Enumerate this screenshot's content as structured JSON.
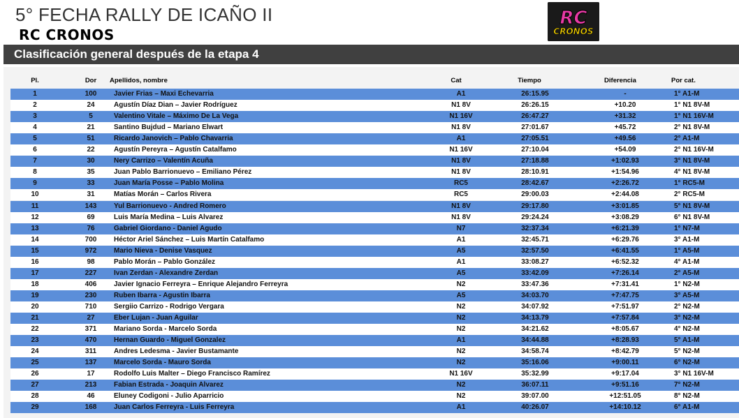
{
  "title": "5° FECHA RALLY DE ICAÑO II",
  "subtitle": "RC CRONOS",
  "logo": {
    "text_top": "RC",
    "text_bottom": "CRONOS"
  },
  "banner": "Clasificación general después de la etapa 4",
  "columns": {
    "pl": "Pl.",
    "dor": "Dor",
    "name": "Apellidos, nombre",
    "cat": "Cat",
    "tiempo": "Tiempo",
    "dif": "Diferencia",
    "porcat": "Por cat."
  },
  "rows": [
    {
      "pl": "1",
      "dor": "100",
      "name": "Javier Frias –  Maxi Echevarria",
      "cat": "A1",
      "tiempo": "26:15.95",
      "dif": "-",
      "porcat": "1° A1-M"
    },
    {
      "pl": "2",
      "dor": "24",
      "name": "Agustín Díaz Dian – Javier Rodríguez",
      "cat": "N1 8V",
      "tiempo": "26:26.15",
      "dif": "+10.20",
      "porcat": "1° N1 8V-M"
    },
    {
      "pl": "3",
      "dor": "5",
      "name": "Valentino Vitale – Máximo De La Vega",
      "cat": "N1 16V",
      "tiempo": "26:47.27",
      "dif": "+31.32",
      "porcat": "1° N1 16V-M"
    },
    {
      "pl": "4",
      "dor": "21",
      "name": "Santino Bujdud – Mariano Elwart",
      "cat": "N1 8V",
      "tiempo": "27:01.67",
      "dif": "+45.72",
      "porcat": "2° N1 8V-M"
    },
    {
      "pl": "5",
      "dor": "51",
      "name": "Ricardo Janovich – Pablo Chavarria",
      "cat": "A1",
      "tiempo": "27:05.51",
      "dif": "+49.56",
      "porcat": "2° A1-M"
    },
    {
      "pl": "6",
      "dor": "22",
      "name": "Agustín Pereyra  –  Agustín Catalfamo",
      "cat": "N1 16V",
      "tiempo": "27:10.04",
      "dif": "+54.09",
      "porcat": "2° N1 16V-M"
    },
    {
      "pl": "7",
      "dor": "30",
      "name": "Nery Carrizo – Valentín Acuña",
      "cat": "N1 8V",
      "tiempo": "27:18.88",
      "dif": "+1:02.93",
      "porcat": "3° N1 8V-M"
    },
    {
      "pl": "8",
      "dor": "35",
      "name": "Juan Pablo Barrionuevo – Emiliano Pérez",
      "cat": "N1 8V",
      "tiempo": "28:10.91",
      "dif": "+1:54.96",
      "porcat": "4° N1 8V-M"
    },
    {
      "pl": "9",
      "dor": "33",
      "name": "Juan María Posse – Pablo Molina",
      "cat": "RC5",
      "tiempo": "28:42.67",
      "dif": "+2:26.72",
      "porcat": "1° RC5-M"
    },
    {
      "pl": "10",
      "dor": "31",
      "name": "Matías Morán – Carlos Rivera",
      "cat": "RC5",
      "tiempo": "29:00.03",
      "dif": "+2:44.08",
      "porcat": "2° RC5-M"
    },
    {
      "pl": "11",
      "dor": "143",
      "name": "Yul Barrionuevo - Andred Romero",
      "cat": "N1 8V",
      "tiempo": "29:17.80",
      "dif": "+3:01.85",
      "porcat": "5° N1 8V-M"
    },
    {
      "pl": "12",
      "dor": "69",
      "name": "Luis María Medina – Luis Alvarez",
      "cat": "N1 8V",
      "tiempo": "29:24.24",
      "dif": "+3:08.29",
      "porcat": "6° N1 8V-M"
    },
    {
      "pl": "13",
      "dor": "76",
      "name": "Gabriel  Giordano - Daniel Agudo",
      "cat": "N7",
      "tiempo": "32:37.34",
      "dif": "+6:21.39",
      "porcat": "1° N7-M"
    },
    {
      "pl": "14",
      "dor": "700",
      "name": "Héctor Ariel Sánchez – Luis Martín Catalfamo",
      "cat": "A1",
      "tiempo": "32:45.71",
      "dif": "+6:29.76",
      "porcat": "3° A1-M"
    },
    {
      "pl": "15",
      "dor": "972",
      "name": "Mario Nieva - Denise Vasquez",
      "cat": "A5",
      "tiempo": "32:57.50",
      "dif": "+6:41.55",
      "porcat": "1° A5-M"
    },
    {
      "pl": "16",
      "dor": "98",
      "name": "Pablo Morán – Pablo González",
      "cat": "A1",
      "tiempo": "33:08.27",
      "dif": "+6:52.32",
      "porcat": "4° A1-M"
    },
    {
      "pl": "17",
      "dor": "227",
      "name": "Ivan Zerdan - Alexandre Zerdan",
      "cat": "A5",
      "tiempo": "33:42.09",
      "dif": "+7:26.14",
      "porcat": "2° A5-M"
    },
    {
      "pl": "18",
      "dor": "406",
      "name": "Javier Ignacio Ferreyra – Enrique Alejandro Ferreyra",
      "cat": "N2",
      "tiempo": "33:47.36",
      "dif": "+7:31.41",
      "porcat": "1° N2-M"
    },
    {
      "pl": "19",
      "dor": "230",
      "name": "Ruben Ibarra - Agustin Ibarra",
      "cat": "A5",
      "tiempo": "34:03.70",
      "dif": "+7:47.75",
      "porcat": "3° A5-M"
    },
    {
      "pl": "20",
      "dor": "710",
      "name": "Sergiio Carrizo - Rodrigo Vergara",
      "cat": "N2",
      "tiempo": "34:07.92",
      "dif": "+7:51.97",
      "porcat": "2° N2-M"
    },
    {
      "pl": "21",
      "dor": "27",
      "name": "Eber Lujan - Juan Aguilar",
      "cat": "N2",
      "tiempo": "34:13.79",
      "dif": "+7:57.84",
      "porcat": "3° N2-M"
    },
    {
      "pl": "22",
      "dor": "371",
      "name": "Mariano Sorda - Marcelo Sorda",
      "cat": "N2",
      "tiempo": "34:21.62",
      "dif": "+8:05.67",
      "porcat": "4° N2-M"
    },
    {
      "pl": "23",
      "dor": "470",
      "name": "Hernan Guardo - Miguel Gonzalez",
      "cat": "A1",
      "tiempo": "34:44.88",
      "dif": "+8:28.93",
      "porcat": "5° A1-M"
    },
    {
      "pl": "24",
      "dor": "311",
      "name": "Andres Ledesma - Javier Bustamante",
      "cat": "N2",
      "tiempo": "34:58.74",
      "dif": "+8:42.79",
      "porcat": "5° N2-M"
    },
    {
      "pl": "25",
      "dor": "137",
      "name": "Marcelo Sorda - Mauro Sorda",
      "cat": "N2",
      "tiempo": "35:16.06",
      "dif": "+9:00.11",
      "porcat": "6° N2-M"
    },
    {
      "pl": "26",
      "dor": "17",
      "name": "Rodolfo Luis Malter – Diego Francisco Ramírez",
      "cat": "N1 16V",
      "tiempo": "35:32.99",
      "dif": "+9:17.04",
      "porcat": "3° N1 16V-M"
    },
    {
      "pl": "27",
      "dor": "213",
      "name": "Fabian Estrada - Joaquin Alvarez",
      "cat": "N2",
      "tiempo": "36:07.11",
      "dif": "+9:51.16",
      "porcat": "7° N2-M"
    },
    {
      "pl": "28",
      "dor": "46",
      "name": "Eluney Codigoni - Julio Aparricio",
      "cat": "N2",
      "tiempo": "39:07.00",
      "dif": "+12:51.05",
      "porcat": "8° N2-M"
    },
    {
      "pl": "29",
      "dor": "168",
      "name": "Juan Carlos Ferreyra - Luis Ferreyra",
      "cat": "A1",
      "tiempo": "40:26.07",
      "dif": "+14:10.12",
      "porcat": "6° A1-M"
    }
  ]
}
